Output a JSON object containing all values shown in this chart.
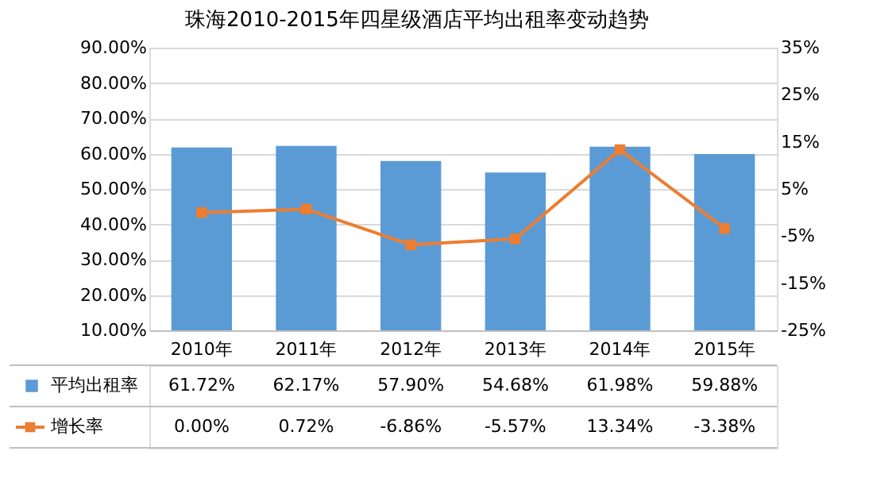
{
  "chart_data": {
    "type": "bar",
    "title": "珠海2010-2015年四星级酒店平均出租率变动趋势",
    "categories": [
      "2010年",
      "2011年",
      "2012年",
      "2013年",
      "2014年",
      "2015年"
    ],
    "series": [
      {
        "name": "平均出租率",
        "color": "#5b9bd5",
        "values": [
          61.72,
          62.17,
          57.9,
          54.68,
          61.98,
          59.88
        ],
        "value_labels": [
          "61.72%",
          "62.17%",
          "57.90%",
          "54.68%",
          "61.98%",
          "59.88%"
        ]
      },
      {
        "name": "增长率",
        "type": "line",
        "axis": "y2",
        "color": "#ed7d31",
        "values": [
          0.0,
          0.72,
          -6.86,
          -5.57,
          13.34,
          -3.38
        ],
        "value_labels": [
          "0.00%",
          "0.72%",
          "-6.86%",
          "-5.57%",
          "13.34%",
          "-3.38%"
        ]
      }
    ],
    "ylim": [
      10,
      90
    ],
    "yticks": [
      {
        "value": 10,
        "label": "10.00%"
      },
      {
        "value": 20,
        "label": "20.00%"
      },
      {
        "value": 30,
        "label": "30.00%"
      },
      {
        "value": 40,
        "label": "40.00%"
      },
      {
        "value": 50,
        "label": "50.00%"
      },
      {
        "value": 60,
        "label": "60.00%"
      },
      {
        "value": 70,
        "label": "70.00%"
      },
      {
        "value": 80,
        "label": "80.00%"
      },
      {
        "value": 90,
        "label": "90.00%"
      }
    ],
    "y2lim": [
      -25,
      35
    ],
    "y2ticks": [
      {
        "value": -25,
        "label": "-25%"
      },
      {
        "value": -15,
        "label": "-15%"
      },
      {
        "value": -5,
        "label": "-5%"
      },
      {
        "value": 5,
        "label": "5%"
      },
      {
        "value": 15,
        "label": "15%"
      },
      {
        "value": 25,
        "label": "25%"
      },
      {
        "value": 35,
        "label": "35%"
      }
    ],
    "grid": "y",
    "legend": "bottom left",
    "marker": "square",
    "line_style": "solid"
  }
}
